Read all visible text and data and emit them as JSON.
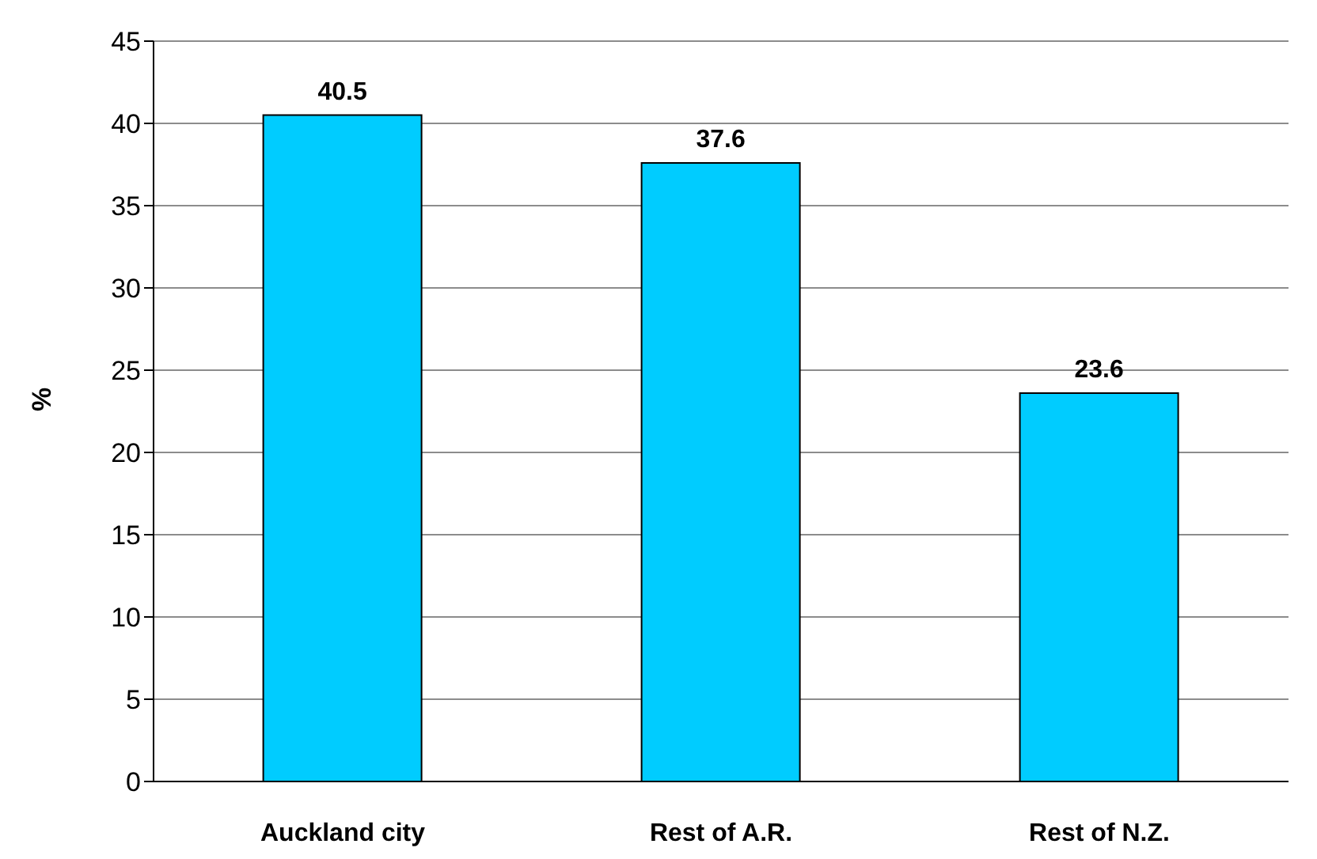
{
  "chart_data": {
    "type": "bar",
    "ylabel": "%",
    "categories": [
      "Auckland city",
      "Rest of A.R.",
      "Rest of N.Z."
    ],
    "values": [
      40.5,
      37.6,
      23.6
    ],
    "color": "#00ccff",
    "ylim": [
      0,
      45
    ],
    "yticks": [
      0,
      5,
      10,
      15,
      20,
      25,
      30,
      35,
      40,
      45
    ],
    "grid": "y",
    "data_labels": true,
    "legend": false
  }
}
